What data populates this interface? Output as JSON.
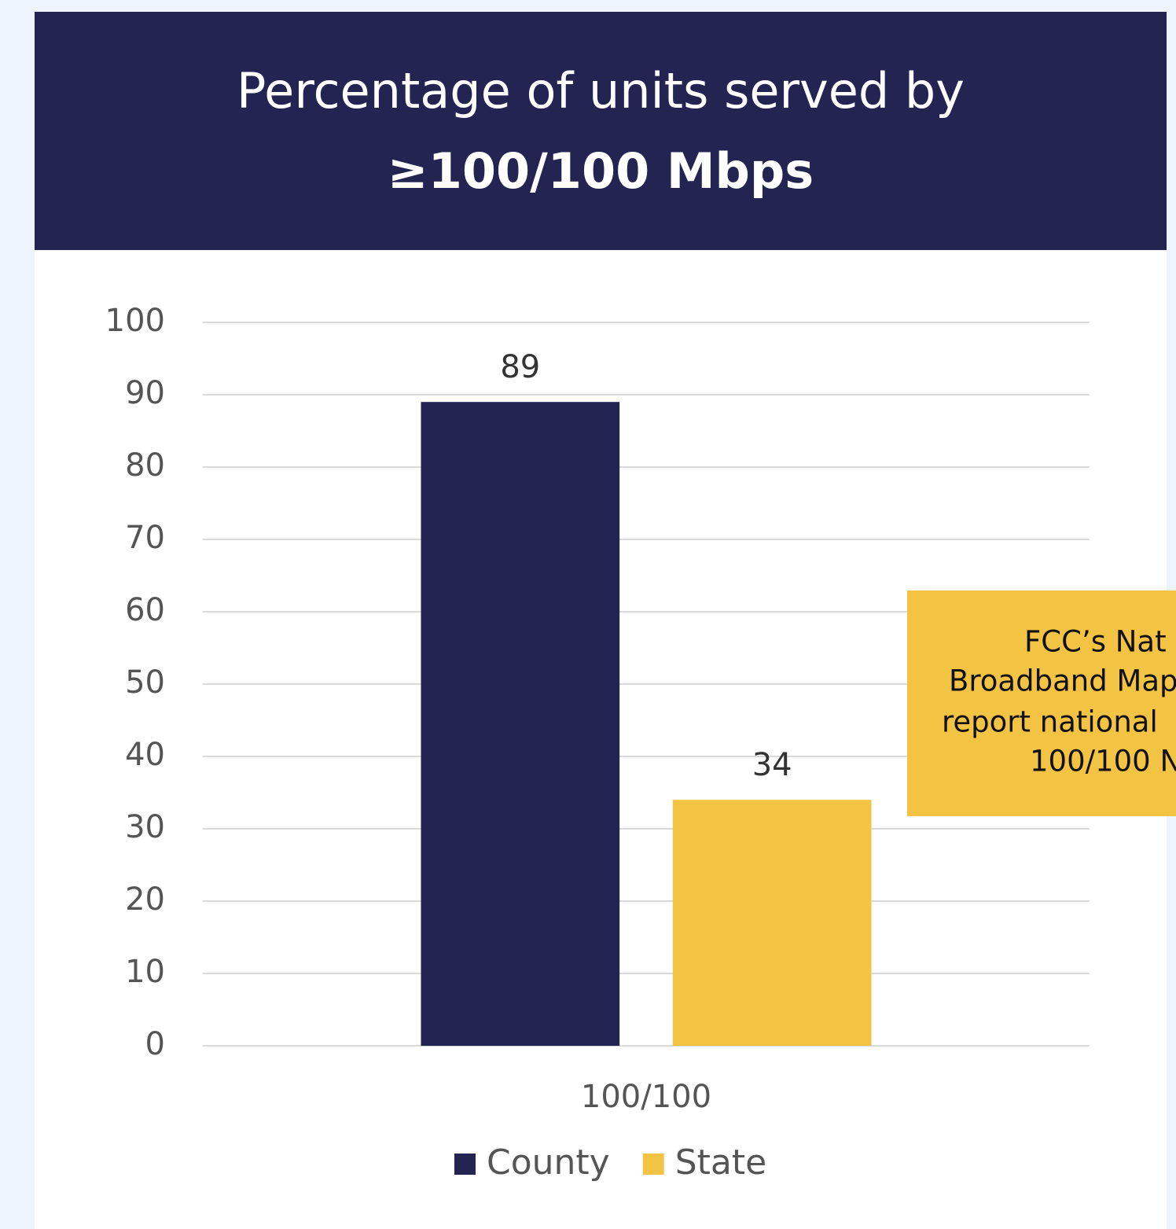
{
  "chart_data": {
    "type": "bar",
    "title": "Percentage of units served by",
    "subtitle": "≥100/100 Mbps",
    "categories": [
      "100/100"
    ],
    "series": [
      {
        "name": "County",
        "color": "#232451",
        "values": [
          89
        ]
      },
      {
        "name": "State",
        "color": "#f3c343",
        "values": [
          34
        ]
      }
    ],
    "ylim": [
      0,
      100
    ],
    "yticks": [
      0,
      10,
      20,
      30,
      40,
      50,
      60,
      70,
      80,
      90,
      100
    ],
    "grid": true,
    "annotation": [
      "FCC’s Nat",
      "Broadband Map",
      "report national",
      "100/100 N"
    ],
    "legend": "bottom"
  }
}
